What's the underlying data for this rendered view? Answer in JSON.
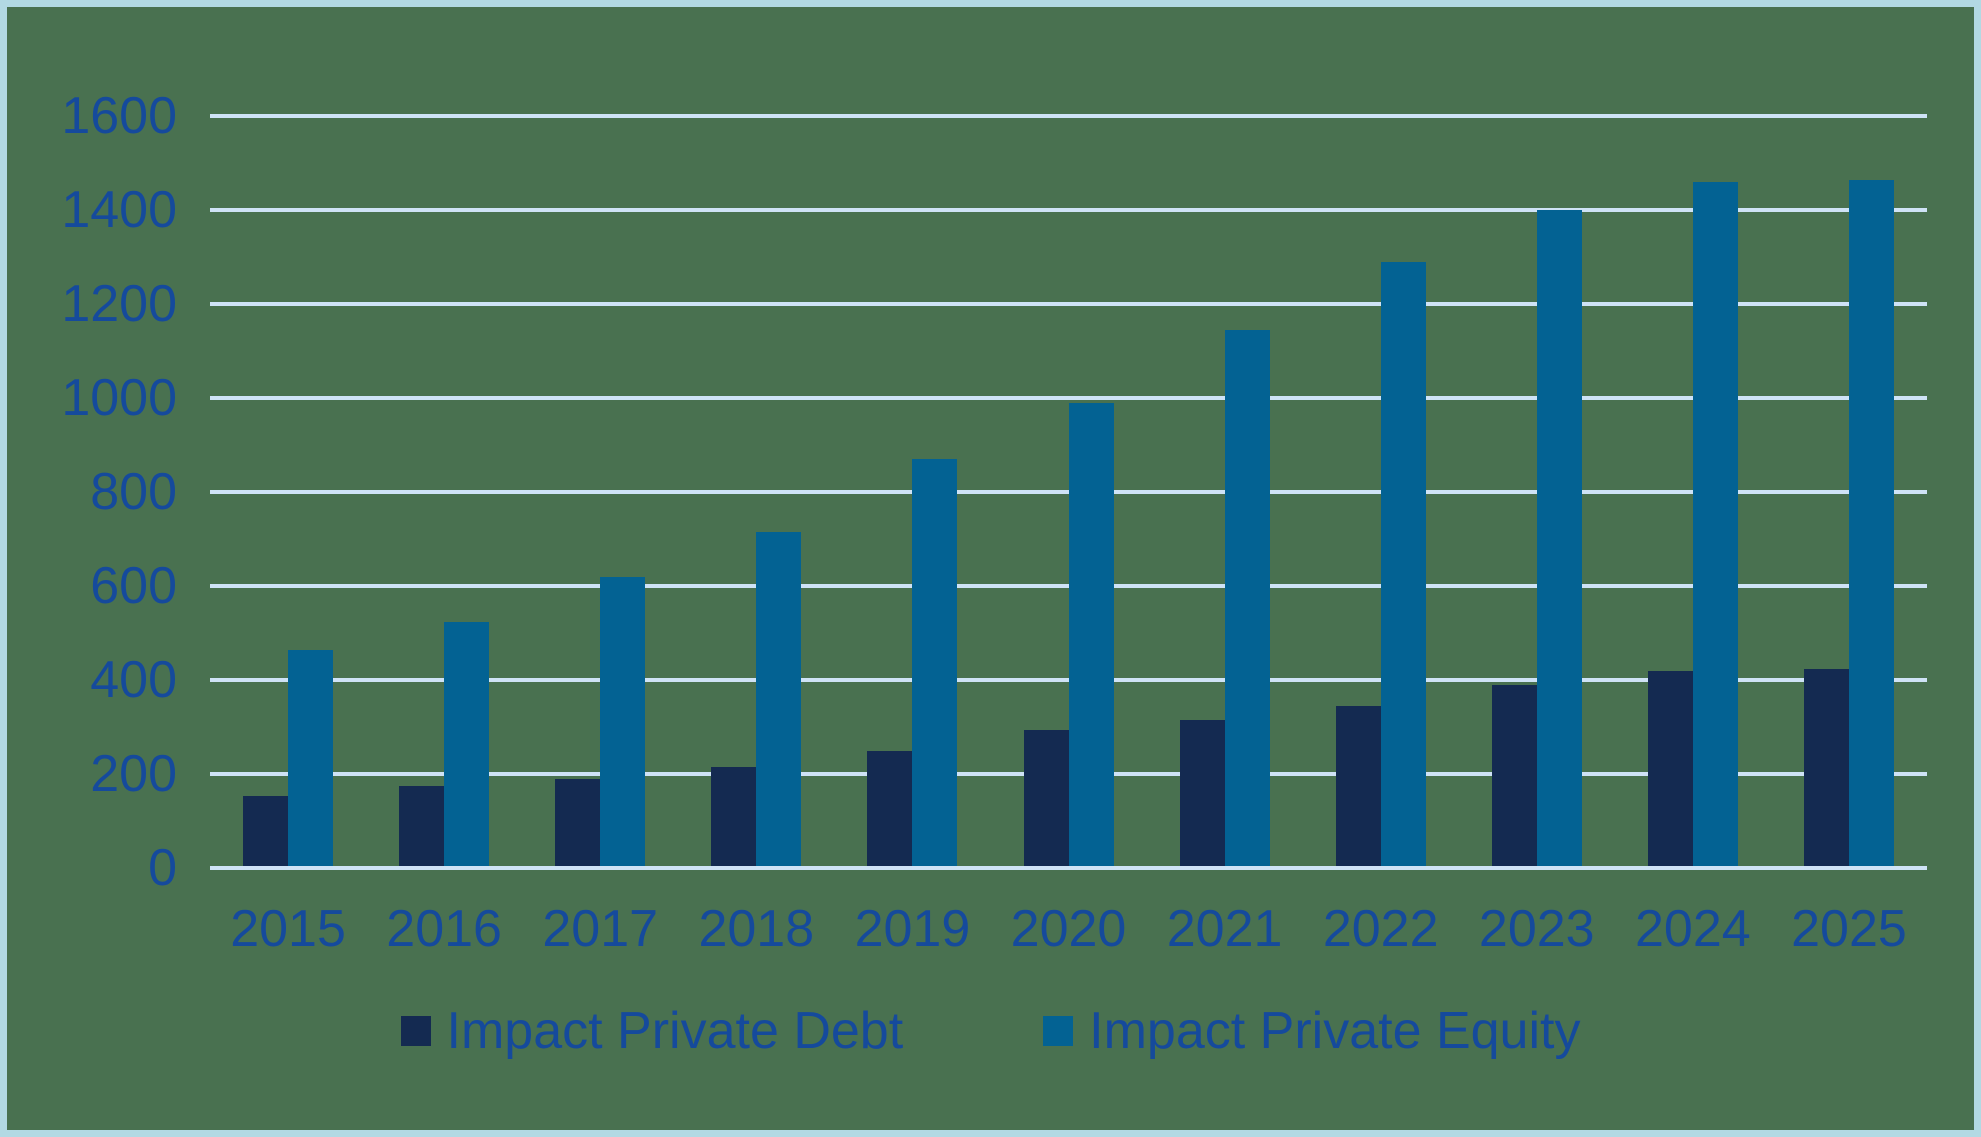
{
  "colors": {
    "background": "#497150",
    "border": "#b2d9e3",
    "gridline": "#cfe3f6",
    "text": "#154a9c",
    "debt_bar": "#142a51",
    "equity_bar": "#036293"
  },
  "legend": {
    "items": [
      {
        "label": "Impact Private Debt",
        "color": "#142a51"
      },
      {
        "label": "Impact Private Equity",
        "color": "#036293"
      }
    ]
  },
  "chart_data": {
    "type": "bar",
    "title": "",
    "xlabel": "",
    "ylabel": "",
    "categories": [
      "2015",
      "2016",
      "2017",
      "2018",
      "2019",
      "2020",
      "2021",
      "2022",
      "2023",
      "2024",
      "2025"
    ],
    "series": [
      {
        "name": "Impact Private Debt",
        "color": "#142a51",
        "values": [
          150,
          170,
          185,
          210,
          245,
          290,
          310,
          340,
          385,
          415,
          420
        ]
      },
      {
        "name": "Impact Private Equity",
        "color": "#036293",
        "values": [
          460,
          520,
          615,
          710,
          865,
          985,
          1140,
          1285,
          1395,
          1455,
          1460
        ]
      }
    ],
    "ylim": [
      0,
      1600
    ],
    "ytick_step": 200,
    "yticks": [
      "0",
      "200",
      "400",
      "600",
      "800",
      "1000",
      "1200",
      "1400",
      "1600"
    ],
    "grid": true,
    "legend_position": "bottom"
  }
}
